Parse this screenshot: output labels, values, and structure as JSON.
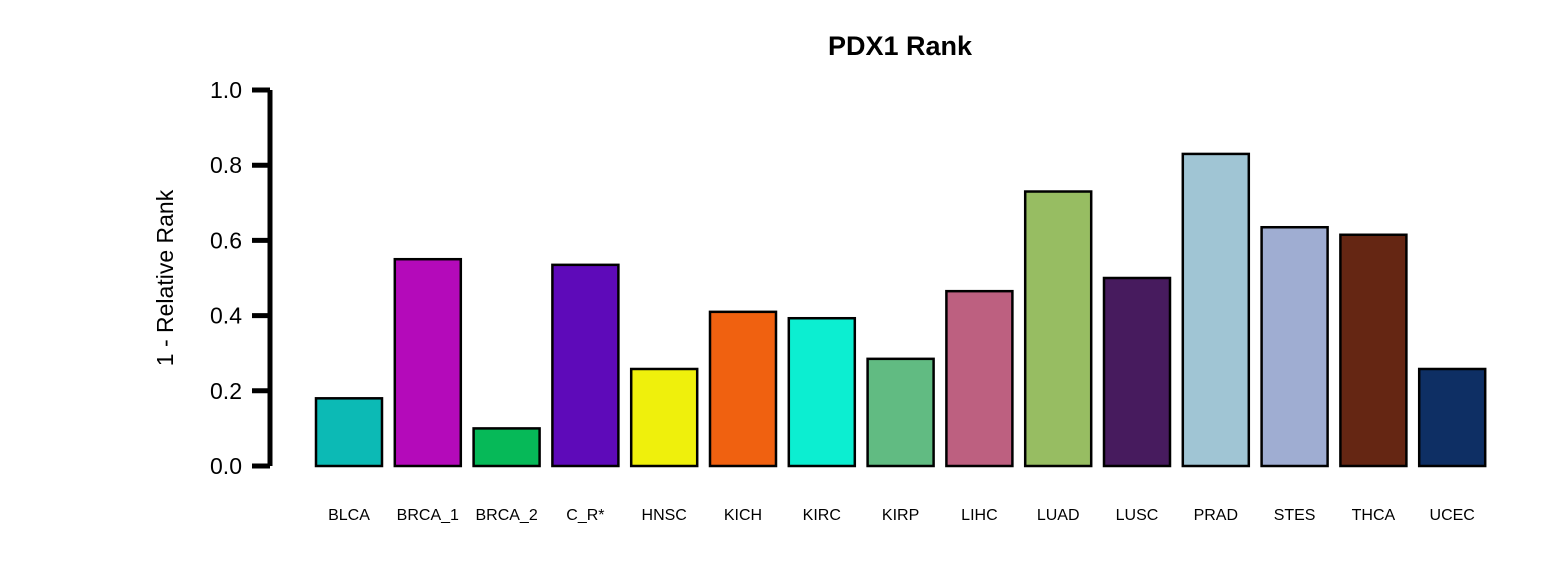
{
  "chart_data": {
    "type": "bar",
    "title": "PDX1 Rank",
    "xlabel": "",
    "ylabel": "1 - Relative Rank",
    "ylim": [
      0,
      1.0
    ],
    "yticks": [
      "0.0",
      "0.2",
      "0.4",
      "0.6",
      "0.8",
      "1.0"
    ],
    "ytick_values": [
      0,
      0.2,
      0.4,
      0.6,
      0.8,
      1.0
    ],
    "grid": false,
    "categories": [
      "BLCA",
      "BRCA_1",
      "BRCA_2",
      "C_R*",
      "HNSC",
      "KICH",
      "KIRC",
      "KIRP",
      "LIHC",
      "LUAD",
      "LUSC",
      "PRAD",
      "STES",
      "THCA",
      "UCEC"
    ],
    "values": [
      0.18,
      0.55,
      0.1,
      0.535,
      0.258,
      0.41,
      0.393,
      0.285,
      0.465,
      0.73,
      0.5,
      0.83,
      0.635,
      0.615,
      0.258
    ],
    "colors": [
      "#0CBAB5",
      "#B40ABA",
      "#06B958",
      "#5E0AB9",
      "#EFF00C",
      "#F06110",
      "#0CEED1",
      "#61BB82",
      "#BD6080",
      "#97BD62",
      "#471B5E",
      "#A0C5D4",
      "#9FADD2",
      "#652613",
      "#0E2F64"
    ]
  }
}
